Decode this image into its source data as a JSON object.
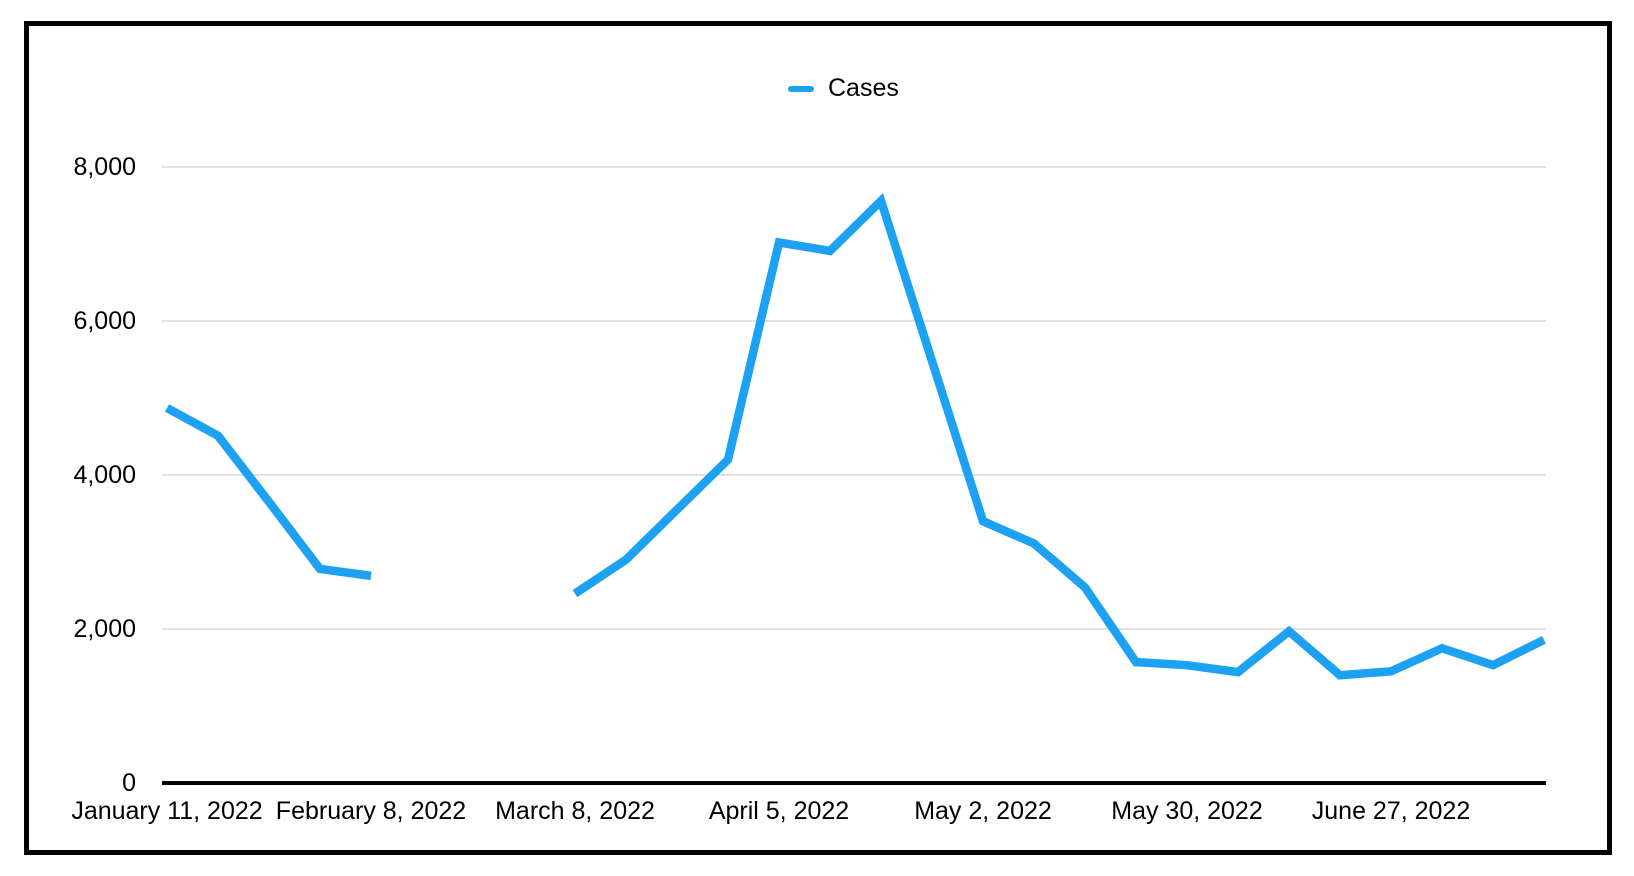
{
  "legend": {
    "label": "Cases",
    "position": "top-center"
  },
  "colors": {
    "line": "#1da1f2",
    "grid": "#d8d8d8",
    "axis": "#000000",
    "text": "#000000",
    "background": "#ffffff",
    "frame": "#000000"
  },
  "chart_data": {
    "type": "line",
    "title": "",
    "xlabel": "",
    "ylabel": "",
    "ylim": [
      0,
      8000
    ],
    "grid": "horizontal",
    "legend_entries": [
      "Cases"
    ],
    "y_ticks": [
      0,
      2000,
      4000,
      6000,
      8000
    ],
    "y_tick_labels": [
      "0",
      "2,000",
      "4,000",
      "6,000",
      "8,000"
    ],
    "x_tick_labels": [
      "January 11, 2022",
      "February 8, 2022",
      "March 8, 2022",
      "April 5, 2022",
      "May 2, 2022",
      "May 30, 2022",
      "June 27, 2022"
    ],
    "x_tick_indices": [
      0,
      4,
      8,
      12,
      16,
      20,
      24
    ],
    "point_interval": "weekly",
    "series": [
      {
        "name": "Cases",
        "values": [
          4870,
          4510,
          3650,
          2780,
          2690,
          null,
          null,
          null,
          2460,
          2900,
          3550,
          4200,
          7020,
          6910,
          7560,
          5480,
          3400,
          3110,
          2540,
          1570,
          1530,
          1440,
          1970,
          1400,
          1450,
          1750,
          1530,
          1860
        ]
      }
    ]
  }
}
